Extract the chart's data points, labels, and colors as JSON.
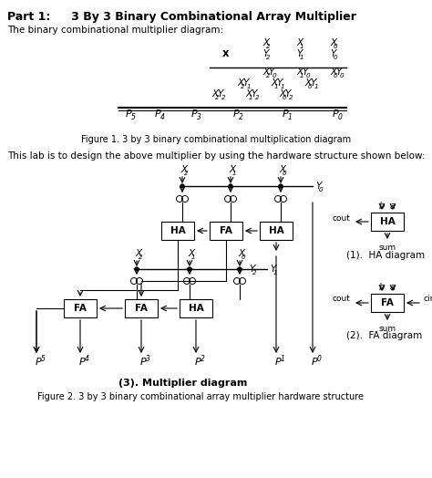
{
  "title_bold": "Part 1:",
  "title_rest": "      3 By 3 Binary Combinational Array Multiplier",
  "subtitle": "The binary combinational multiplier diagram:",
  "fig_caption1": "Figure 1. 3 by 3 binary combinational multiplication diagram",
  "fig_caption2": "Figure 2. 3 by 3 binary combinational array multiplier hardware structure",
  "body_text": "This lab is to design the above multiplier by using the hardware structure shown below:",
  "mult_label": "(3). Multiplier diagram",
  "ha_label": "(1).  HA diagram",
  "fa_label": "(2).  FA diagram",
  "bg_color": "#ffffff"
}
